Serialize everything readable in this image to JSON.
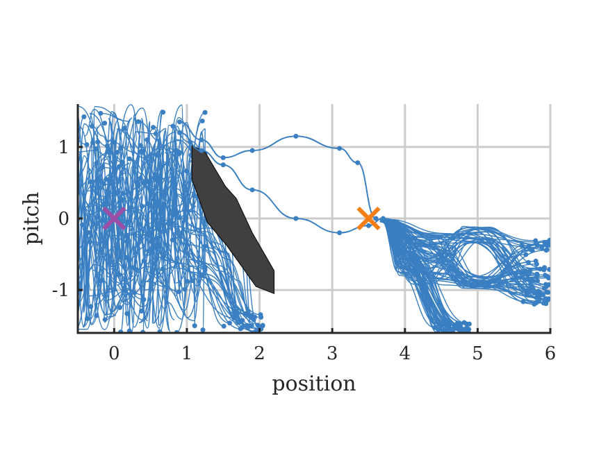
{
  "chart_data": {
    "type": "line",
    "title": "",
    "xlabel": "position",
    "ylabel": "pitch",
    "xlim": [
      -0.5,
      6
    ],
    "ylim": [
      -1.6,
      1.6
    ],
    "xticks": [
      0,
      1,
      2,
      3,
      4,
      5,
      6
    ],
    "xtick_labels": [
      "0",
      "1",
      "2",
      "3",
      "4",
      "5",
      "6"
    ],
    "yticks": [
      -1,
      0,
      1
    ],
    "ytick_labels": [
      "-1",
      "0",
      "1"
    ],
    "grid": true,
    "colors": {
      "trajectories": "#3a7fc1",
      "obstacle": "#404040",
      "start_marker": "#9b4fa6",
      "goal_marker": "#f57f17"
    },
    "markers": [
      {
        "name": "start",
        "shape": "x",
        "x": 0.0,
        "y": 0.0
      },
      {
        "name": "goal",
        "shape": "x",
        "x": 3.5,
        "y": 0.0
      }
    ],
    "obstacle_polygon": [
      [
        1.07,
        1.02
      ],
      [
        1.25,
        0.93
      ],
      [
        1.53,
        0.45
      ],
      [
        1.68,
        0.28
      ],
      [
        1.9,
        -0.2
      ],
      [
        2.2,
        -0.73
      ],
      [
        2.2,
        -1.05
      ],
      [
        1.95,
        -0.95
      ],
      [
        1.72,
        -0.62
      ],
      [
        1.55,
        -0.38
      ],
      [
        1.28,
        -0.05
      ],
      [
        1.07,
        0.55
      ]
    ],
    "highlighted_paths": [
      {
        "x": [
          0.9,
          1.2,
          1.5,
          1.9,
          2.5,
          3.1,
          3.35,
          3.6
        ],
        "y": [
          1.35,
          1.1,
          0.85,
          0.95,
          1.15,
          0.98,
          0.78,
          0.0
        ]
      },
      {
        "x": [
          0.9,
          1.2,
          1.5,
          1.9,
          2.5,
          3.1,
          3.5,
          3.7
        ],
        "y": [
          1.2,
          0.95,
          0.75,
          0.4,
          0.0,
          -0.2,
          -0.1,
          0.0
        ]
      }
    ],
    "trajectory_clusters": [
      {
        "x_range": [
          -0.5,
          1.2
        ],
        "y_range": [
          -1.6,
          1.6
        ],
        "count": 140
      },
      {
        "x_range": [
          0.6,
          2.0
        ],
        "y_range": [
          -1.6,
          1.1
        ],
        "count": 35
      },
      {
        "x_range": [
          3.6,
          4.9
        ],
        "y_range": [
          -1.6,
          0.0
        ],
        "count": 45
      },
      {
        "x_range": [
          3.7,
          6.0
        ],
        "y_range": [
          -1.3,
          -0.25
        ],
        "count": 70
      }
    ]
  }
}
